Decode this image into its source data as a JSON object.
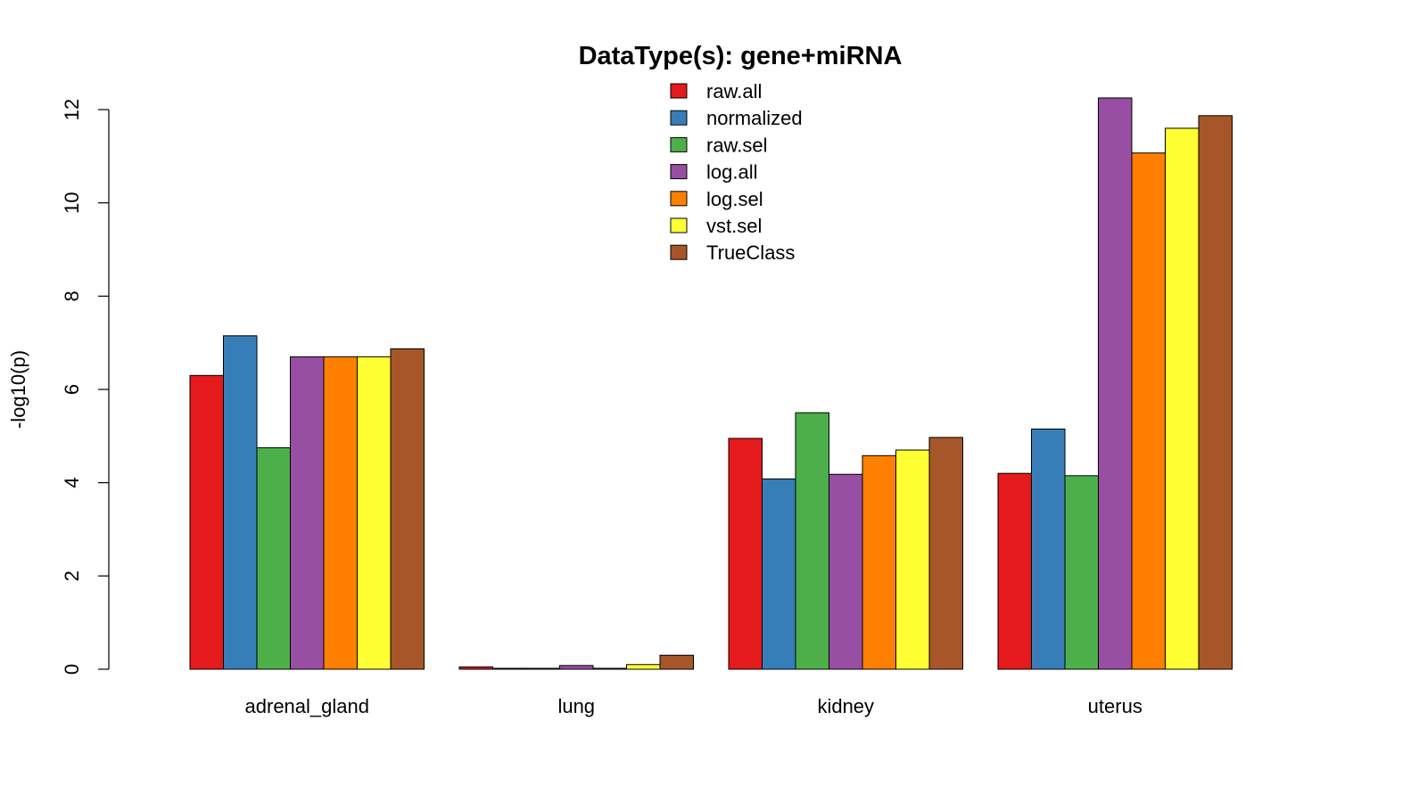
{
  "chart_data": {
    "type": "bar",
    "title": "DataType(s): gene+miRNA",
    "ylabel": "-log10(p)",
    "xlabel": "",
    "ylim": [
      0,
      12
    ],
    "yticks": [
      0,
      2,
      4,
      6,
      8,
      10,
      12
    ],
    "grid": false,
    "legend_position": "top-center",
    "categories": [
      "adrenal_gland",
      "lung",
      "kidney",
      "uterus"
    ],
    "series": [
      {
        "name": "raw.all",
        "color": "#E41A1C",
        "values": [
          6.3,
          0.05,
          4.95,
          4.2
        ]
      },
      {
        "name": "normalized",
        "color": "#377EB8",
        "values": [
          7.15,
          0.02,
          4.08,
          5.15
        ]
      },
      {
        "name": "raw.sel",
        "color": "#4DAF4A",
        "values": [
          4.75,
          0.02,
          5.5,
          4.15
        ]
      },
      {
        "name": "log.all",
        "color": "#984EA3",
        "values": [
          6.7,
          0.08,
          4.18,
          12.25
        ]
      },
      {
        "name": "log.sel",
        "color": "#FF7F00",
        "values": [
          6.7,
          0.02,
          4.58,
          11.07
        ]
      },
      {
        "name": "vst.sel",
        "color": "#FFFF33",
        "values": [
          6.7,
          0.1,
          4.7,
          11.6
        ]
      },
      {
        "name": "TrueClass",
        "color": "#A65628",
        "values": [
          6.87,
          0.3,
          4.97,
          11.87
        ]
      }
    ]
  }
}
